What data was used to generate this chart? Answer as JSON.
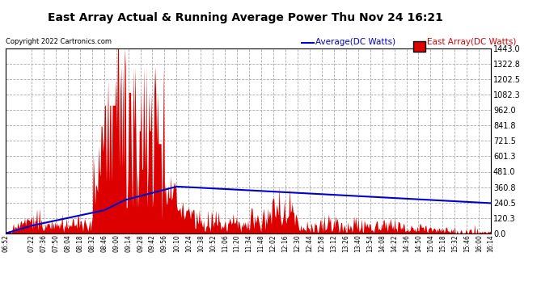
{
  "title": "East Array Actual & Running Average Power Thu Nov 24 16:21",
  "copyright": "Copyright 2022 Cartronics.com",
  "legend_avg": "Average(DC Watts)",
  "legend_east": "East Array(DC Watts)",
  "yticks": [
    0.0,
    120.3,
    240.5,
    360.8,
    481.0,
    601.3,
    721.5,
    841.8,
    962.0,
    1082.3,
    1202.5,
    1322.8,
    1443.0
  ],
  "ymax": 1443.0,
  "ymin": 0.0,
  "background_color": "#ffffff",
  "grid_color": "#aaaaaa",
  "east_color": "#dd0000",
  "avg_color": "#0000cc",
  "title_color": "#000000",
  "copyright_color": "#000000",
  "legend_avg_color": "#0000cc",
  "legend_east_color": "#dd0000",
  "tick_labels": [
    "06:52",
    "07:22",
    "07:36",
    "07:50",
    "08:04",
    "08:18",
    "08:32",
    "08:46",
    "09:00",
    "09:14",
    "09:28",
    "09:42",
    "09:56",
    "10:10",
    "10:24",
    "10:38",
    "10:52",
    "11:06",
    "11:20",
    "11:34",
    "11:48",
    "12:02",
    "12:16",
    "12:30",
    "12:44",
    "12:58",
    "13:12",
    "13:26",
    "13:40",
    "13:54",
    "14:08",
    "14:22",
    "14:36",
    "14:50",
    "15:04",
    "15:18",
    "15:32",
    "15:46",
    "16:00",
    "16:14"
  ],
  "start_hhmm": "06:52",
  "end_hhmm": "16:14"
}
